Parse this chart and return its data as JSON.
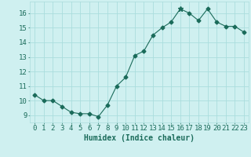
{
  "x": [
    0,
    1,
    2,
    3,
    4,
    5,
    6,
    7,
    8,
    9,
    10,
    11,
    12,
    13,
    14,
    15,
    16,
    17,
    18,
    19,
    20,
    21,
    22,
    23
  ],
  "y": [
    10.4,
    10.0,
    10.0,
    9.6,
    9.2,
    9.1,
    9.1,
    8.9,
    9.7,
    11.0,
    11.6,
    13.1,
    13.4,
    14.5,
    15.0,
    15.4,
    16.3,
    16.0,
    15.5,
    16.3,
    15.4,
    15.1,
    15.1,
    14.7
  ],
  "xlim": [
    -0.5,
    23.5
  ],
  "ylim": [
    8.5,
    16.8
  ],
  "yticks": [
    9,
    10,
    11,
    12,
    13,
    14,
    15,
    16
  ],
  "xticks": [
    0,
    1,
    2,
    3,
    4,
    5,
    6,
    7,
    8,
    9,
    10,
    11,
    12,
    13,
    14,
    15,
    16,
    17,
    18,
    19,
    20,
    21,
    22,
    23
  ],
  "xlabel": "Humidex (Indice chaleur)",
  "line_color": "#1a6b5a",
  "marker_size": 2.5,
  "bg_color": "#cff0f0",
  "grid_color": "#aadddd",
  "xlabel_fontsize": 7,
  "tick_fontsize": 6.5,
  "special_marker_idx": 16
}
